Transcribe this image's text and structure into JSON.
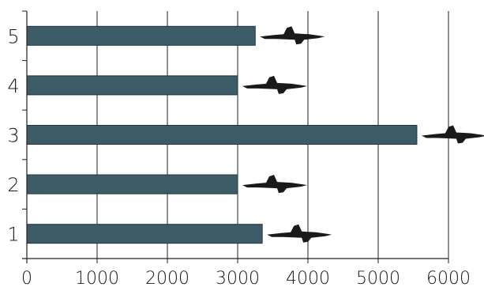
{
  "chart_data": {
    "type": "bar",
    "orientation": "horizontal",
    "categories": [
      "1",
      "2",
      "3",
      "4",
      "5"
    ],
    "values": [
      3350,
      3000,
      5550,
      3000,
      3250
    ],
    "xlim": [
      0,
      6000
    ],
    "xticks": [
      "0",
      "1000",
      "2000",
      "3000",
      "4000",
      "5000",
      "6000"
    ],
    "grid": true,
    "legend": "none",
    "bar_color": "#3d5c68",
    "icons": [
      "fighter-jet-icon",
      "fighter-jet-icon",
      "fighter-jet-icon",
      "fighter-jet-icon",
      "fighter-jet-icon"
    ]
  }
}
